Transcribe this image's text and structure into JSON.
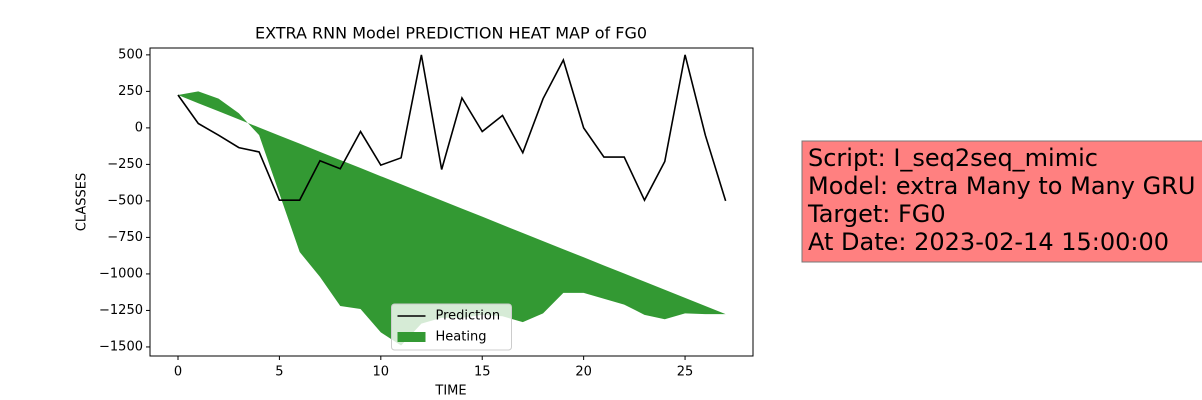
{
  "chart_data": {
    "type": "line",
    "title": "EXTRA RNN Model PREDICTION HEAT MAP of FG0",
    "xlabel": "TIME",
    "ylabel": "CLASSES",
    "x": [
      0,
      1,
      2,
      3,
      4,
      5,
      6,
      7,
      8,
      9,
      10,
      11,
      12,
      13,
      14,
      15,
      16,
      17,
      18,
      19,
      20,
      21,
      22,
      23,
      24,
      25,
      26,
      27
    ],
    "series": [
      {
        "name": "Prediction",
        "color": "#000000",
        "kind": "line",
        "values": [
          225,
          30,
          -50,
          -135,
          -165,
          -495,
          -495,
          -225,
          -280,
          -25,
          -255,
          -205,
          500,
          -285,
          205,
          -25,
          85,
          -170,
          200,
          465,
          0,
          -200,
          -200,
          -495,
          -230,
          500,
          -50,
          -500
        ]
      },
      {
        "name": "Heating",
        "color": "#339933",
        "kind": "fill_between",
        "y1": [
          225,
          250,
          200,
          100,
          -50,
          -450,
          -850,
          -1020,
          -1220,
          -1240,
          -1400,
          -1490,
          -1340,
          -1300,
          -1300,
          -1280,
          -1290,
          -1330,
          -1270,
          -1130,
          -1130,
          -1170,
          -1210,
          -1280,
          -1310,
          -1270,
          -1275,
          -1275
        ],
        "y2": [
          225,
          169,
          114,
          58,
          3,
          -53,
          -108,
          -164,
          -220,
          -275,
          -331,
          -386,
          -442,
          -497,
          -553,
          -608,
          -664,
          -720,
          -775,
          -831,
          -886,
          -942,
          -997,
          -1053,
          -1108,
          -1164,
          -1220,
          -1275
        ]
      }
    ],
    "xlim": [
      -1.38,
      28.35
    ],
    "ylim": [
      -1562,
      547
    ],
    "xticks": [
      0,
      5,
      10,
      15,
      20,
      25
    ],
    "yticks": [
      {
        "value": -1500,
        "label": "−1500"
      },
      {
        "value": -1250,
        "label": "−1250"
      },
      {
        "value": -1000,
        "label": "−1000"
      },
      {
        "value": -750,
        "label": "−750"
      },
      {
        "value": -500,
        "label": "−500"
      },
      {
        "value": -250,
        "label": "−250"
      },
      0,
      250,
      500
    ],
    "legend": "lower center",
    "textbox": {
      "lines": [
        "Script: I_seq2seq_mimic",
        "Model: extra Many to Many GRU",
        "Target: FG0",
        "At Date: 2023-02-14 15:00:00"
      ],
      "color": "#ff8080"
    }
  }
}
